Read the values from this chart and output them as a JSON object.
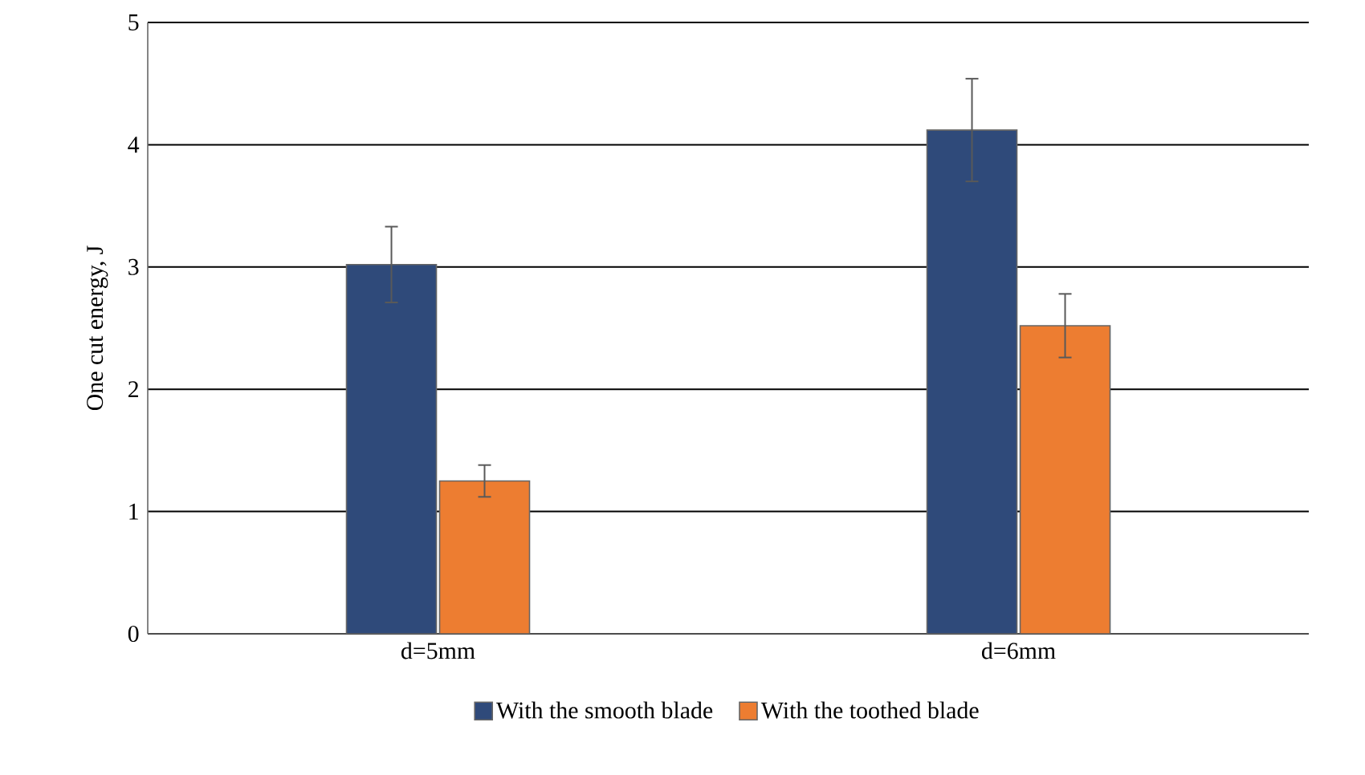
{
  "chart_data": {
    "type": "bar",
    "ylabel": "One cut energy, J",
    "categories": [
      "d=5mm",
      "d=6mm"
    ],
    "series": [
      {
        "name": "With the smooth blade",
        "color": "#2f4a7a",
        "values": [
          3.02,
          4.12
        ],
        "errors": [
          0.31,
          0.42
        ]
      },
      {
        "name": "With the toothed blade",
        "color": "#ed7d31",
        "values": [
          1.25,
          2.52
        ],
        "errors": [
          0.13,
          0.26
        ]
      }
    ],
    "ylim": [
      0,
      5
    ],
    "yticks": [
      0,
      1,
      2,
      3,
      4,
      5
    ],
    "grid": "y",
    "legend": "bottom"
  }
}
